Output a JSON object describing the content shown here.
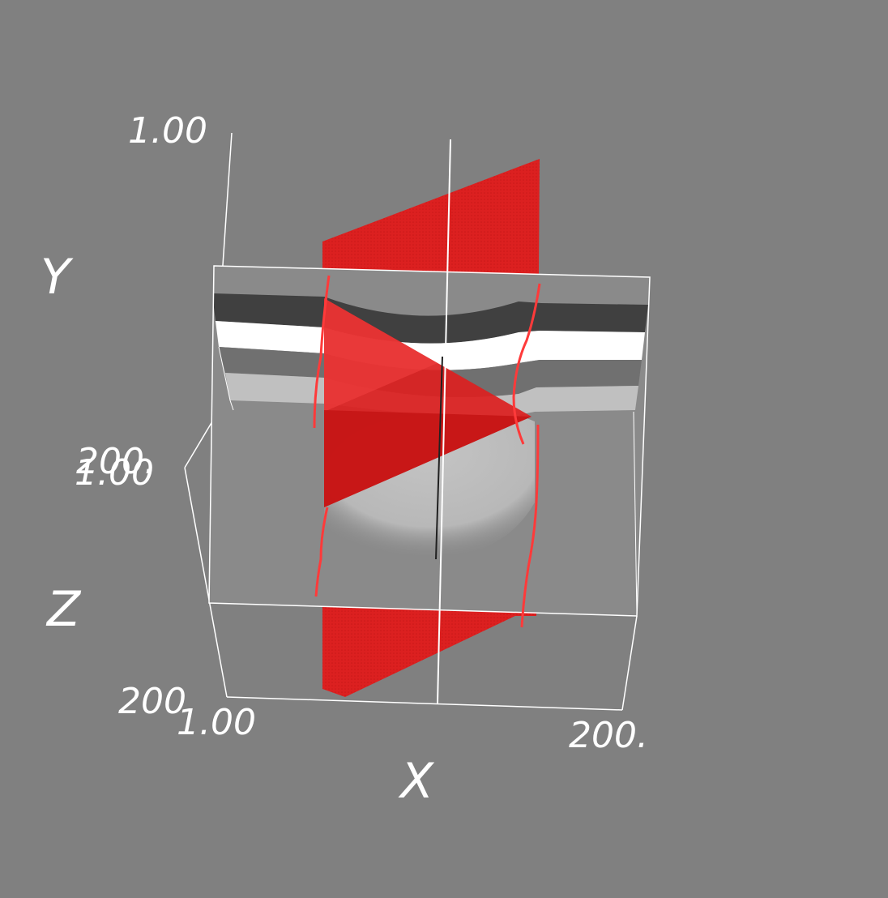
{
  "background": "#808080",
  "colors": {
    "slice_plane": "#dc2020",
    "slice_plane_dark": "#c41414",
    "slice_plane_light": "#f03a3a",
    "curve": "#ff3030",
    "frame": "#ffffff",
    "layer_dark": "#404040",
    "layer_white": "#ffffff",
    "layer_mid": "#6e6e6e",
    "layer_light": "#c0c0c0",
    "slice_fill": "#8a8a8a"
  },
  "axes": {
    "x": {
      "title": "X",
      "min_label": "1.00",
      "max_label": "200."
    },
    "y": {
      "title": "Y",
      "max_label": "1.00",
      "min_label": "200."
    },
    "z": {
      "title": "Z",
      "min_label": "1.00",
      "max_label": "200"
    }
  }
}
